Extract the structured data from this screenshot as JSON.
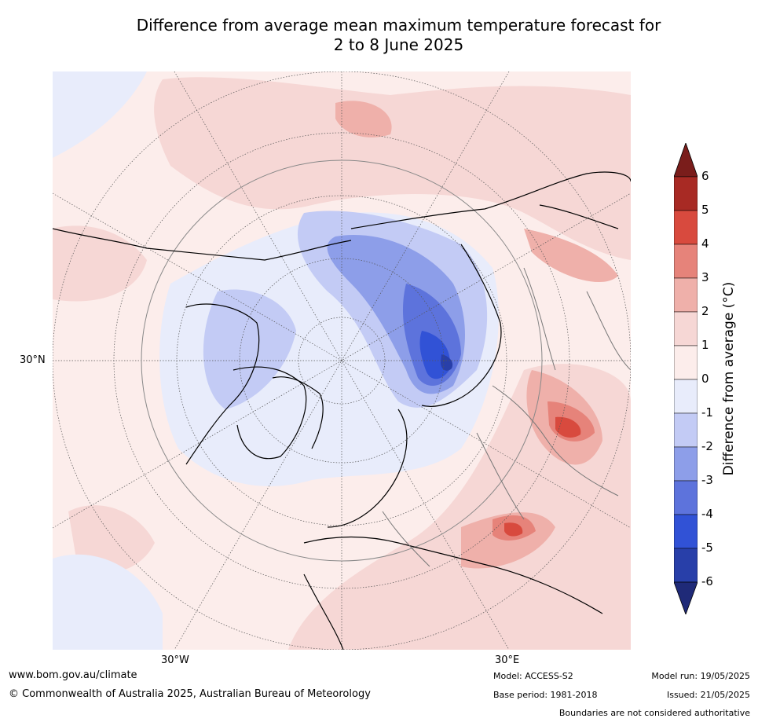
{
  "title_line1": "Difference from average mean maximum temperature forecast for",
  "title_line2": "2 to 8 June 2025",
  "map": {
    "lat_label": "30°N",
    "lon_label_west": "30°W",
    "lon_label_east": "30°E"
  },
  "colorbar": {
    "label": "Difference from average (°C)",
    "ticks": [
      "6",
      "5",
      "4",
      "3",
      "2",
      "1",
      "0",
      "-1",
      "-2",
      "-3",
      "-4",
      "-5",
      "-6"
    ],
    "colors": {
      "above6": "#7a1d1b",
      "5to6": "#a82a24",
      "4to5": "#d84a3e",
      "3to4": "#e6837a",
      "2to3": "#efb0aa",
      "1to2": "#f6d7d5",
      "0to1": "#fcedeb",
      "-1to0": "#e8ecfb",
      "-2to-1": "#c3cbf5",
      "-3to-2": "#8d9ee9",
      "-4to-3": "#5d73dc",
      "-5to-4": "#3152d6",
      "-6to-5": "#283fa9",
      "below-6": "#1f2a78"
    }
  },
  "footer": {
    "url": "www.bom.gov.au/climate",
    "copyright": "© Commonwealth of Australia 2025, Australian Bureau of Meteorology",
    "model": "Model: ACCESS-S2",
    "base_period": "Base period: 1981-2018",
    "model_run": "Model run: 19/05/2025",
    "issued": "Issued: 21/05/2025",
    "disclaimer": "Boundaries are not considered authoritative"
  }
}
